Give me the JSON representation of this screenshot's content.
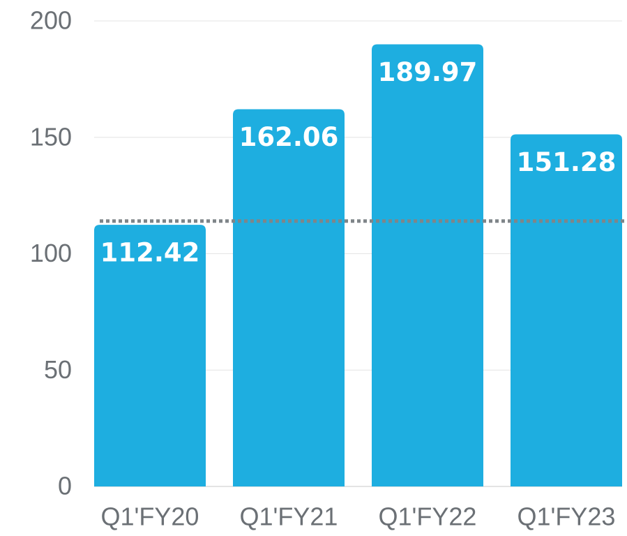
{
  "chart_data": {
    "type": "bar",
    "categories": [
      "Q1'FY20",
      "Q1'FY21",
      "Q1'FY22",
      "Q1'FY23"
    ],
    "values": [
      112.42,
      162.06,
      189.97,
      151.28
    ],
    "color": "#1eaee0",
    "ylim": [
      0,
      200
    ],
    "yticks": [
      0,
      50,
      100,
      150,
      200
    ],
    "grid": true,
    "reference_line": 114
  }
}
